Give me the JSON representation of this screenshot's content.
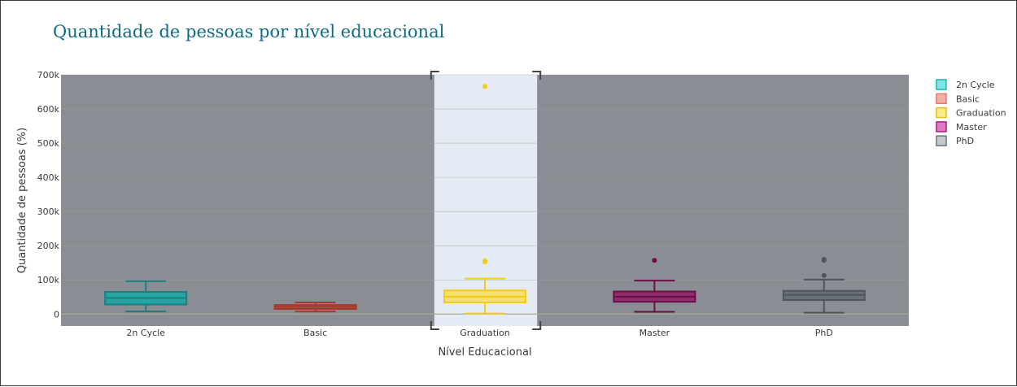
{
  "chart_data": {
    "type": "box",
    "title": "Quantidade de pessoas por nível educacional",
    "xlabel": "Nível Educacional",
    "ylabel": "Quantidade de pessoas (%)",
    "ylim": [
      -35000,
      700000
    ],
    "yticks": [
      0,
      100000,
      200000,
      300000,
      400000,
      500000,
      600000,
      700000
    ],
    "ytick_labels": [
      "0",
      "100k",
      "200k",
      "300k",
      "400k",
      "500k",
      "600k",
      "700k"
    ],
    "plot_background": "#8a8d93",
    "grid": true,
    "grid_color": "#a1a58e",
    "legend_position": "right",
    "highlighted_category": "Graduation",
    "highlight_color": "#e4ebf5",
    "categories": [
      "2n Cycle",
      "Basic",
      "Graduation",
      "Master",
      "PhD"
    ],
    "series": [
      {
        "name": "2n Cycle",
        "min": 7500,
        "q1": 28000,
        "median": 47000,
        "q3": 65000,
        "max": 96000,
        "outliers": [],
        "color": "#1a7f7f",
        "fill": "#27a3a3",
        "legend_fill": "#7fe6e6",
        "legend_stroke": "#1ab8b8"
      },
      {
        "name": "Basic",
        "min": 7500,
        "q1": 15000,
        "median": 21000,
        "q3": 26500,
        "max": 34000,
        "outliers": [],
        "color": "#a6382c",
        "fill": "#b95b4e",
        "legend_fill": "#f5b0a6",
        "legend_stroke": "#e07a6a"
      },
      {
        "name": "Graduation",
        "min": 1700,
        "q1": 34000,
        "median": 51000,
        "q3": 69000,
        "max": 104000,
        "outliers": [
          153000,
          156000,
          666000
        ],
        "color": "#f2cc17",
        "fill": "#f7df70",
        "legend_fill": "#fbe98a",
        "legend_stroke": "#e2c21a"
      },
      {
        "name": "Master",
        "min": 6500,
        "q1": 36000,
        "median": 50500,
        "q3": 66000,
        "max": 98000,
        "outliers": [
          157000
        ],
        "color": "#6b0d47",
        "fill": "#8e2d6b",
        "legend_fill": "#e07ac0",
        "legend_stroke": "#b01a84"
      },
      {
        "name": "PhD",
        "min": 4000,
        "q1": 41000,
        "median": 56000,
        "q3": 68000,
        "max": 101000,
        "outliers": [
          113000,
          157000,
          160000
        ],
        "color": "#4f555c",
        "fill": "#6a7078",
        "legend_fill": "#c3c8cf",
        "legend_stroke": "#6a7480"
      }
    ]
  }
}
